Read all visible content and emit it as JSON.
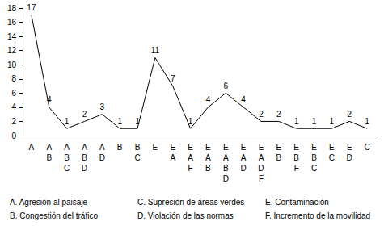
{
  "chart_data": {
    "type": "line",
    "categories": [
      "A",
      "A\nB",
      "A\nB\nC",
      "A\nB\nD",
      "A\nD",
      "B",
      "B\nC",
      "E",
      "E\nA",
      "E\nA\nF",
      "E\nA\nB",
      "E\nA\nB\nD",
      "E\nA\nD",
      "E\nA\nD\nF",
      "E\nB",
      "E\nB\nF",
      "E\nB\nC",
      "E\nC",
      "E\nD",
      "C"
    ],
    "values": [
      17,
      4,
      1,
      2,
      3,
      1,
      1,
      11,
      7,
      1,
      4,
      6,
      4,
      2,
      2,
      1,
      1,
      1,
      2,
      1
    ],
    "color": "#000000",
    "ylim": [
      0,
      18
    ],
    "yticks": [
      0,
      2,
      4,
      6,
      8,
      10,
      12,
      14,
      16,
      18
    ],
    "grid": false,
    "data_labels": true,
    "annotations": [
      "A. Agresión al paisaje",
      "B. Congestión del tráfico",
      "C. Supresión de áreas verdes",
      "D. Violación de las normas",
      "E. Contaminación",
      "F. Incremento de la movilidad"
    ]
  }
}
